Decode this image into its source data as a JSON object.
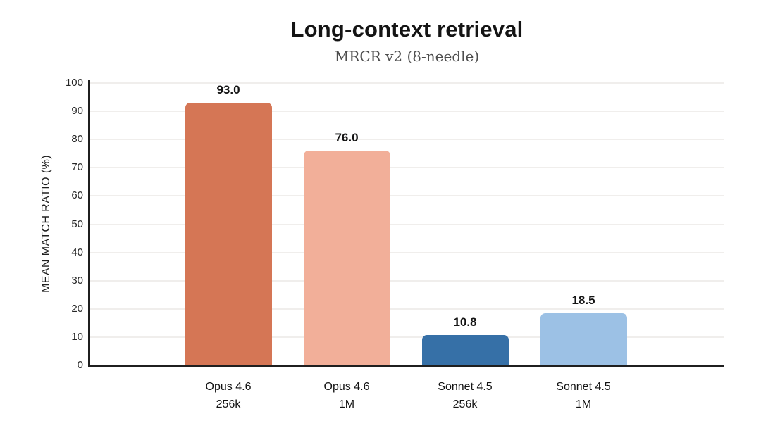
{
  "chart_data": {
    "type": "bar",
    "title": "Long-context retrieval",
    "subtitle": "MRCR v2 (8-needle)",
    "ylabel": "MEAN MATCH RATIO (%)",
    "xlabel": "",
    "categories": [
      {
        "label": "Opus 4.6",
        "sublabel": "256k"
      },
      {
        "label": "Opus 4.6",
        "sublabel": "1M"
      },
      {
        "label": "Sonnet 4.5",
        "sublabel": "256k"
      },
      {
        "label": "Sonnet 4.5",
        "sublabel": "1M"
      }
    ],
    "values": [
      93.0,
      76.0,
      10.8,
      18.5
    ],
    "value_labels": [
      "93.0",
      "76.0",
      "10.8",
      "18.5"
    ],
    "bar_colors": [
      "#d57655",
      "#f2af99",
      "#3670a7",
      "#9cc1e5"
    ],
    "ylim": [
      0,
      100
    ],
    "yticks": [
      0,
      10,
      20,
      30,
      40,
      50,
      60,
      70,
      80,
      90,
      100
    ],
    "grid": "horizontal-light",
    "legend": "none"
  },
  "colors": {
    "background": "#ffffff",
    "axis": "#1f1f1f",
    "gridline": "#f0eeec",
    "title": "#141414",
    "subtitle": "#4d4d4d",
    "tick_label": "#262626"
  }
}
